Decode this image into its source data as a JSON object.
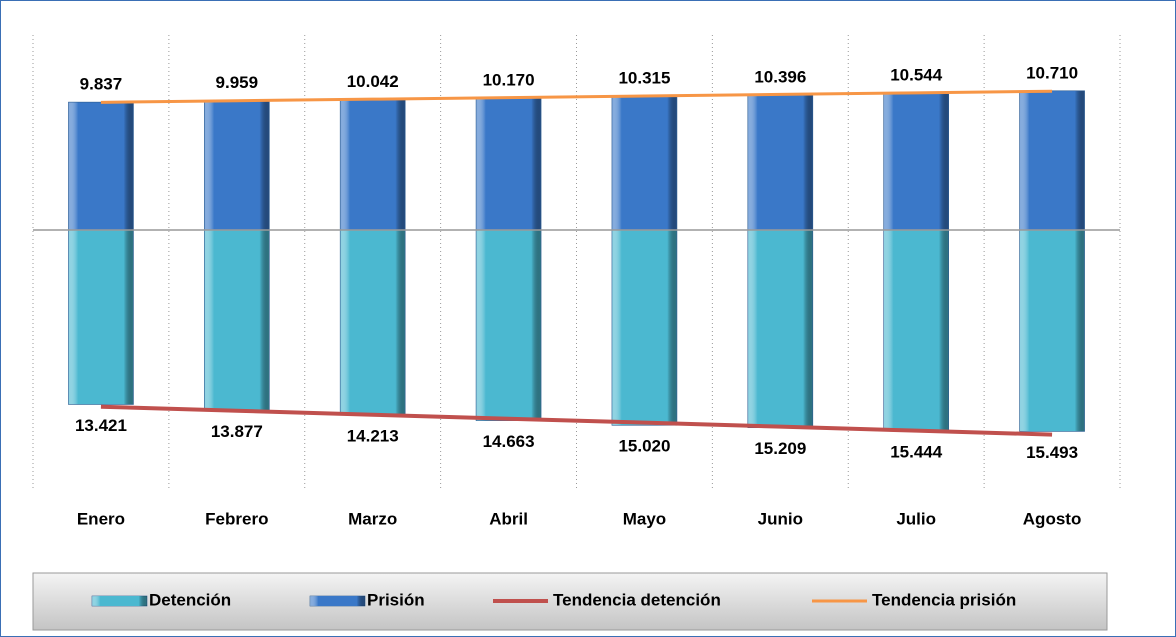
{
  "chart_data": {
    "type": "diverging_bar",
    "categories": [
      "Enero",
      "Febrero",
      "Marzo",
      "Abril",
      "Mayo",
      "Junio",
      "Julio",
      "Agosto"
    ],
    "ylim": [
      -20000,
      15000
    ],
    "series": [
      {
        "name": "Detención",
        "color": "#4bb8d0",
        "side": "below",
        "values": [
          13421,
          13877,
          14213,
          14663,
          15020,
          15209,
          15444,
          15493
        ],
        "value_labels": [
          "13.421",
          "13.877",
          "14.213",
          "14.663",
          "15.020",
          "15.209",
          "15.444",
          "15.493"
        ]
      },
      {
        "name": "Prisión",
        "color": "#3a78c8",
        "side": "above",
        "values": [
          9837,
          9959,
          10042,
          10170,
          10315,
          10396,
          10544,
          10710
        ],
        "value_labels": [
          "9.837",
          "9.959",
          "10.042",
          "10.170",
          "10.315",
          "10.396",
          "10.544",
          "10.710"
        ]
      }
    ],
    "trendlines": [
      {
        "name": "Tendencia detención",
        "color": "#c0504d",
        "series": 0
      },
      {
        "name": "Tendencia prisión",
        "color": "#f79646",
        "series": 1
      }
    ],
    "legend": "bottom"
  }
}
